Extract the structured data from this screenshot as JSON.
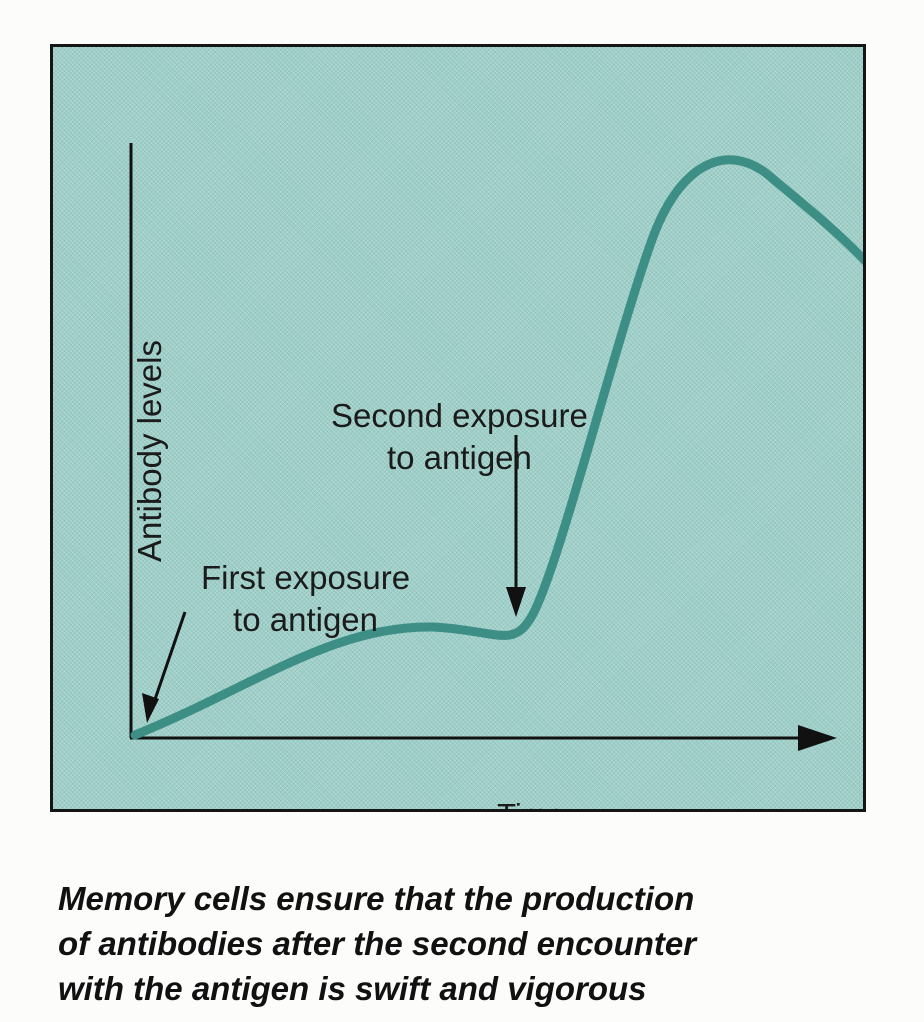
{
  "figure": {
    "y_axis_label": "Antibody levels",
    "x_axis_label": "Time",
    "annotations": {
      "first_exposure": {
        "line1": "First exposure",
        "line2": "to antigen"
      },
      "second_exposure": {
        "line1": "Second exposure",
        "line2": "to antigen"
      }
    },
    "colors": {
      "panel_background": "#9dcec8",
      "curve": "#3d8f86",
      "axes_and_arrows": "#111111"
    }
  },
  "caption": {
    "line1": "Memory cells ensure that the production",
    "line2": "of antibodies after the second encounter",
    "line3": "with the antigen is swift and vigorous"
  }
}
